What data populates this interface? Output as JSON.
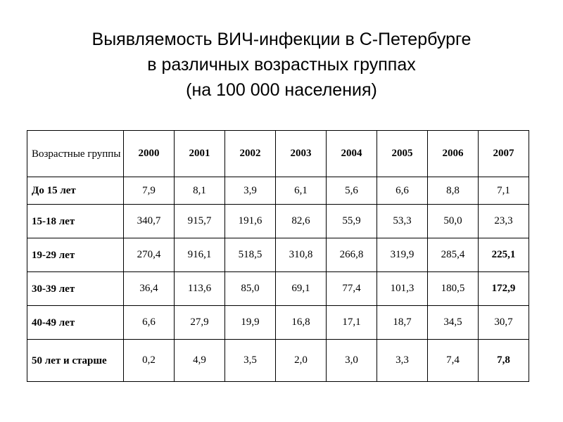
{
  "title": {
    "line1": "Выявляемость ВИЧ-инфекции в С-Петербурге",
    "line2": "в различных возрастных группах",
    "line3": "(на 100 000 населения)"
  },
  "table": {
    "header": {
      "label": "Возрастные группы",
      "years": [
        "2000",
        "2001",
        "2002",
        "2003",
        "2004",
        "2005",
        "2006",
        "2007"
      ]
    },
    "rows": [
      {
        "label": "До 15 лет",
        "values": [
          "7,9",
          "8,1",
          "3,9",
          "6,1",
          "5,6",
          "6,6",
          "8,8",
          "7,1"
        ],
        "bold_last": false
      },
      {
        "label": "15-18 лет",
        "values": [
          "340,7",
          "915,7",
          "191,6",
          "82,6",
          "55,9",
          "53,3",
          "50,0",
          "23,3"
        ],
        "bold_last": false
      },
      {
        "label": "19-29 лет",
        "values": [
          "270,4",
          "916,1",
          "518,5",
          "310,8",
          "266,8",
          "319,9",
          "285,4",
          "225,1"
        ],
        "bold_last": true
      },
      {
        "label": "30-39 лет",
        "values": [
          "36,4",
          "113,6",
          "85,0",
          "69,1",
          "77,4",
          "101,3",
          "180,5",
          "172,9"
        ],
        "bold_last": true
      },
      {
        "label": "40-49 лет",
        "values": [
          "6,6",
          "27,9",
          "19,9",
          "16,8",
          "17,1",
          "18,7",
          "34,5",
          "30,7"
        ],
        "bold_last": false
      },
      {
        "label": "50 лет и старше",
        "values": [
          "0,2",
          "4,9",
          "3,5",
          "2,0",
          "3,0",
          "3,3",
          "7,4",
          "7,8"
        ],
        "bold_last": true
      }
    ]
  }
}
